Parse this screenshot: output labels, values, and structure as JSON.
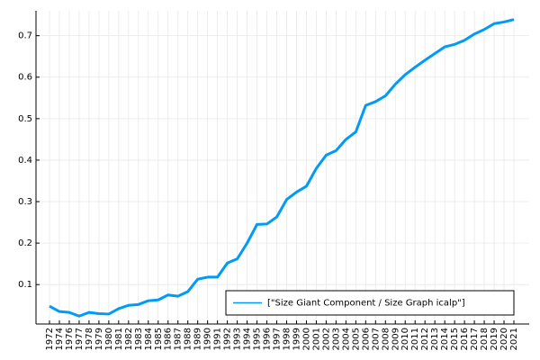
{
  "chart_data": {
    "type": "line",
    "categories": [
      "1972",
      "1974",
      "1976",
      "1977",
      "1978",
      "1979",
      "1980",
      "1981",
      "1982",
      "1983",
      "1984",
      "1985",
      "1986",
      "1987",
      "1988",
      "1989",
      "1990",
      "1991",
      "1992",
      "1993",
      "1994",
      "1995",
      "1996",
      "1997",
      "1998",
      "1999",
      "2000",
      "2001",
      "2002",
      "2003",
      "2004",
      "2005",
      "2006",
      "2007",
      "2008",
      "2009",
      "2010",
      "2011",
      "2012",
      "2013",
      "2014",
      "2015",
      "2016",
      "2017",
      "2018",
      "2019",
      "2020",
      "2021"
    ],
    "series": [
      {
        "name": "[\"Size Giant Component / Size Graph icalp\"]",
        "color": "#009af9",
        "values": [
          0.048,
          0.035,
          0.033,
          0.024,
          0.033,
          0.03,
          0.029,
          0.042,
          0.05,
          0.052,
          0.061,
          0.063,
          0.075,
          0.072,
          0.083,
          0.113,
          0.118,
          0.118,
          0.152,
          0.162,
          0.2,
          0.245,
          0.246,
          0.263,
          0.305,
          0.323,
          0.337,
          0.38,
          0.412,
          0.423,
          0.45,
          0.468,
          0.532,
          0.541,
          0.555,
          0.583,
          0.606,
          0.624,
          0.641,
          0.657,
          0.673,
          0.679,
          0.689,
          0.704,
          0.715,
          0.729,
          0.733,
          0.739
        ]
      }
    ],
    "ylim": [
      0.005,
      0.76
    ],
    "yticks": [
      0.1,
      0.2,
      0.3,
      0.4,
      0.5,
      0.6,
      0.7
    ],
    "grid": true,
    "legend": "bottom-right"
  }
}
